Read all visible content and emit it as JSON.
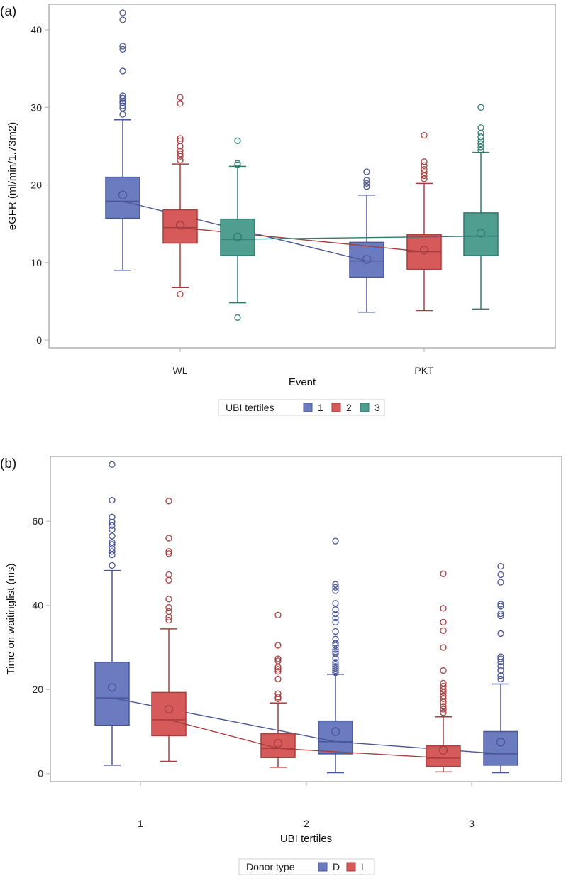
{
  "colors": {
    "blue_fill": "#6b7bbf",
    "blue_stroke": "#4a5596",
    "red_fill": "#d65a5a",
    "red_stroke": "#a83d3d",
    "green_fill": "#4f9e90",
    "green_stroke": "#2e7a6e",
    "frame": "#b0b0b0"
  },
  "chart_data": [
    {
      "type": "box",
      "panel_label": "(a)",
      "xlabel": "Event",
      "ylabel": "eGFR (ml/min/1.73m2)",
      "categories": [
        "WL",
        "PKT"
      ],
      "yticks": [
        0,
        10,
        20,
        30,
        40
      ],
      "ylim": [
        -1,
        43.3
      ],
      "legend": {
        "title": "UBI tertiles",
        "entries": [
          "1",
          "2",
          "3"
        ],
        "placement": "bottom-center"
      },
      "series": [
        {
          "name": "1",
          "color": "blue",
          "boxes": [
            {
              "category": "WL",
              "q1": 15.7,
              "median": 17.9,
              "q3": 21.0,
              "mean": 18.7,
              "whisker_low": 9.0,
              "whisker_high": 28.4,
              "outliers": [
                29.1,
                29.9,
                30.2,
                30.6,
                30.8,
                31.2,
                31.5,
                34.7,
                37.5,
                37.9,
                41.3,
                42.2
              ]
            },
            {
              "category": "PKT",
              "q1": 8.1,
              "median": 10.2,
              "q3": 12.6,
              "mean": 10.4,
              "whisker_low": 3.6,
              "whisker_high": 18.7,
              "outliers": [
                19.8,
                20.2,
                20.6,
                21.7
              ]
            }
          ]
        },
        {
          "name": "2",
          "color": "red",
          "boxes": [
            {
              "category": "WL",
              "q1": 12.5,
              "median": 14.5,
              "q3": 16.8,
              "mean": 14.8,
              "whisker_low": 6.8,
              "whisker_high": 22.7,
              "outliers": [
                5.9,
                23.2,
                23.7,
                24.0,
                24.4,
                25.0,
                25.7,
                26.0,
                30.5,
                31.3
              ]
            },
            {
              "category": "PKT",
              "q1": 9.1,
              "median": 11.4,
              "q3": 13.6,
              "mean": 11.6,
              "whisker_low": 3.8,
              "whisker_high": 20.2,
              "outliers": [
                20.8,
                21.2,
                21.6,
                22.0,
                22.5,
                23.0,
                26.4
              ]
            }
          ]
        },
        {
          "name": "3",
          "color": "green",
          "boxes": [
            {
              "category": "WL",
              "q1": 10.9,
              "median": 13.0,
              "q3": 15.6,
              "mean": 13.3,
              "whisker_low": 4.8,
              "whisker_high": 22.4,
              "outliers": [
                2.9,
                22.6,
                22.8,
                25.7
              ]
            },
            {
              "category": "PKT",
              "q1": 10.9,
              "median": 13.4,
              "q3": 16.4,
              "mean": 13.8,
              "whisker_low": 4.0,
              "whisker_high": 24.2,
              "outliers": [
                24.5,
                24.9,
                25.3,
                25.7,
                26.2,
                26.7,
                27.4,
                30.0
              ]
            }
          ]
        }
      ]
    },
    {
      "type": "box",
      "panel_label": "(b)",
      "xlabel": "UBI   tertiles",
      "ylabel": "Time on waitinglist (ms)",
      "categories": [
        "1",
        "2",
        "3"
      ],
      "yticks": [
        0,
        20,
        40,
        60
      ],
      "ylim": [
        -1.9,
        75.4
      ],
      "legend": {
        "title": "Donor type",
        "entries": [
          "D",
          "L"
        ],
        "placement": "bottom-center"
      },
      "series": [
        {
          "name": "D",
          "color": "blue",
          "boxes": [
            {
              "category": "1",
              "q1": 11.5,
              "median": 18.0,
              "q3": 26.5,
              "mean": 20.5,
              "whisker_low": 2.0,
              "whisker_high": 48.3,
              "outliers": [
                49.5,
                52.0,
                52.8,
                53.5,
                54.5,
                55.0,
                56.5,
                58.0,
                59.0,
                59.8,
                61.0,
                65.0,
                73.5
              ]
            },
            {
              "category": "2",
              "q1": 4.7,
              "median": 7.6,
              "q3": 12.5,
              "mean": 10.0,
              "whisker_low": 0.2,
              "whisker_high": 23.6,
              "outliers": [
                24.0,
                24.5,
                25.0,
                25.5,
                26.0,
                26.5,
                27.5,
                28.5,
                29.0,
                29.5,
                30.5,
                31.0,
                32.0,
                33.8,
                36.0,
                37.0,
                38.0,
                39.0,
                40.5,
                43.5,
                44.3,
                45.0,
                55.3
              ]
            },
            {
              "category": "3",
              "q1": 2.0,
              "median": 4.7,
              "q3": 10.0,
              "mean": 7.5,
              "whisker_low": 0.2,
              "whisker_high": 21.3,
              "outliers": [
                22.5,
                23.3,
                24.5,
                25.5,
                26.5,
                27.3,
                27.8,
                33.3,
                37.5,
                38.0,
                39.8,
                40.3,
                45.5,
                47.3,
                49.3
              ]
            }
          ]
        },
        {
          "name": "L",
          "color": "red",
          "boxes": [
            {
              "category": "1",
              "q1": 9.0,
              "median": 12.8,
              "q3": 19.3,
              "mean": 15.3,
              "whisker_low": 2.9,
              "whisker_high": 34.4,
              "outliers": [
                36.5,
                37.2,
                38.5,
                39.5,
                41.5,
                46.0,
                47.3,
                52.3,
                52.8,
                56.0,
                64.8
              ]
            },
            {
              "category": "2",
              "q1": 3.8,
              "median": 6.0,
              "q3": 9.5,
              "mean": 7.2,
              "whisker_low": 1.5,
              "whisker_high": 16.8,
              "outliers": [
                17.8,
                18.2,
                19.0,
                22.5,
                24.3,
                24.8,
                25.3,
                26.8,
                27.3,
                30.5,
                37.7
              ]
            },
            {
              "category": "3",
              "q1": 1.7,
              "median": 3.7,
              "q3": 6.6,
              "mean": 5.6,
              "whisker_low": 0.4,
              "whisker_high": 13.5,
              "outliers": [
                14.5,
                15.3,
                16.0,
                17.0,
                17.8,
                18.5,
                19.3,
                20.0,
                20.8,
                21.5,
                24.5,
                30.0,
                34.0,
                36.0,
                39.3,
                47.5
              ]
            }
          ]
        }
      ]
    }
  ]
}
